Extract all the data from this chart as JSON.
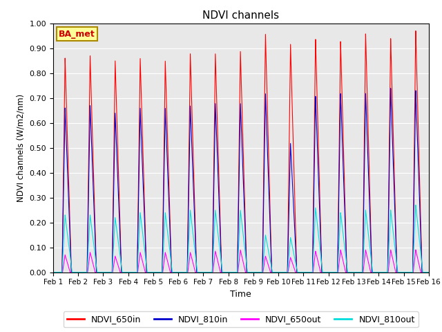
{
  "title": "NDVI channels",
  "xlabel": "Time",
  "ylabel": "NDVI channels (W/m2/nm)",
  "ylim": [
    0.0,
    1.0
  ],
  "annotation": "BA_met",
  "annotation_color": "#cc0000",
  "annotation_bg": "#ffff99",
  "annotation_border": "#aa8800",
  "line_colors": {
    "NDVI_650in": "#ff0000",
    "NDVI_810in": "#0000cc",
    "NDVI_650out": "#ff00ff",
    "NDVI_810out": "#00dddd"
  },
  "xtick_labels": [
    "Feb 1",
    "Feb 2",
    "Feb 3",
    "Feb 4",
    "Feb 5",
    "Feb 6",
    "Feb 7",
    "Feb 8",
    "Feb 9",
    "Feb 10",
    "Feb 11",
    "Feb 12",
    "Feb 13",
    "Feb 14",
    "Feb 15",
    "Feb 16"
  ],
  "background_color": "#e8e8e8",
  "peak_650in": [
    0.86,
    0.87,
    0.85,
    0.86,
    0.85,
    0.88,
    0.88,
    0.89,
    0.96,
    0.92,
    0.94,
    0.93,
    0.96,
    0.94,
    0.97
  ],
  "peak_810in": [
    0.66,
    0.67,
    0.64,
    0.66,
    0.66,
    0.67,
    0.68,
    0.68,
    0.72,
    0.52,
    0.71,
    0.72,
    0.72,
    0.74,
    0.73
  ],
  "peak_650out": [
    0.07,
    0.08,
    0.065,
    0.08,
    0.08,
    0.08,
    0.085,
    0.09,
    0.065,
    0.06,
    0.085,
    0.09,
    0.09,
    0.09,
    0.09
  ],
  "peak_810out": [
    0.23,
    0.23,
    0.22,
    0.24,
    0.24,
    0.25,
    0.25,
    0.25,
    0.15,
    0.14,
    0.26,
    0.24,
    0.25,
    0.25,
    0.27
  ]
}
